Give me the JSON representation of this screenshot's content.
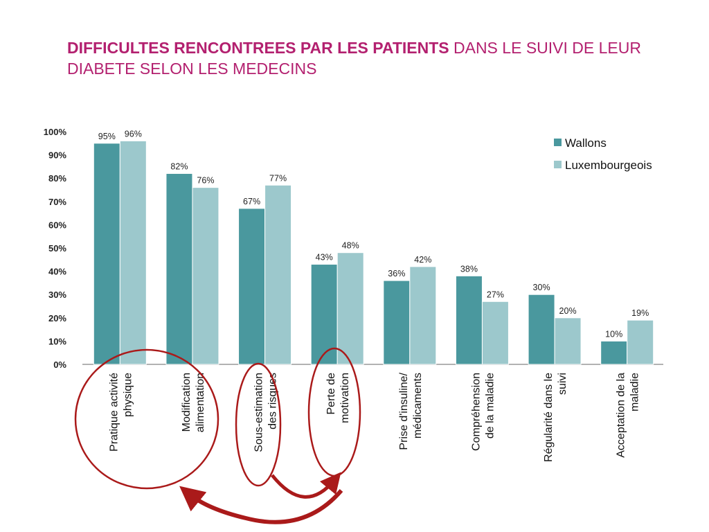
{
  "title": {
    "bold": "DIFFICULTES RENCONTREES PAR LES PATIENTS",
    "rest": " DANS LE SUIVI DE LEUR DIABETE SELON LES MEDECINS"
  },
  "colors": {
    "title": "#b3206f",
    "wallons": "#4a989e",
    "luxembourgeois": "#9cc8cc",
    "annotation": "#aa1a1a"
  },
  "chart_data": {
    "type": "bar",
    "ylim": [
      0,
      100
    ],
    "yticks": [
      "0%",
      "10%",
      "20%",
      "30%",
      "40%",
      "50%",
      "60%",
      "70%",
      "80%",
      "90%",
      "100%"
    ],
    "legend": "top-right",
    "categories": [
      [
        "Pratique activité",
        "physique"
      ],
      [
        "Modification",
        "alimentation"
      ],
      [
        "Sous-estimation",
        "des risques"
      ],
      [
        "Perte de",
        "motivation"
      ],
      [
        "Prise d'insuline/",
        "médicaments"
      ],
      [
        "Compréhension",
        "de la maladie"
      ],
      [
        "Régularité dans le",
        "suivi"
      ],
      [
        "Acceptation de la",
        "maladie"
      ]
    ],
    "series": [
      {
        "name": "Wallons",
        "values": [
          95,
          82,
          67,
          43,
          36,
          38,
          30,
          10
        ]
      },
      {
        "name": "Luxembourgeois",
        "values": [
          96,
          76,
          77,
          48,
          42,
          27,
          20,
          19
        ]
      }
    ],
    "annotations": {
      "circled_categories": [
        0,
        1,
        2,
        3
      ],
      "arrows": [
        {
          "from": "Sous-estimation des risques",
          "to": "Perte de motivation"
        },
        {
          "from": "Perte de motivation",
          "to": "Pratique activité physique / Modification alimentation"
        }
      ]
    }
  }
}
